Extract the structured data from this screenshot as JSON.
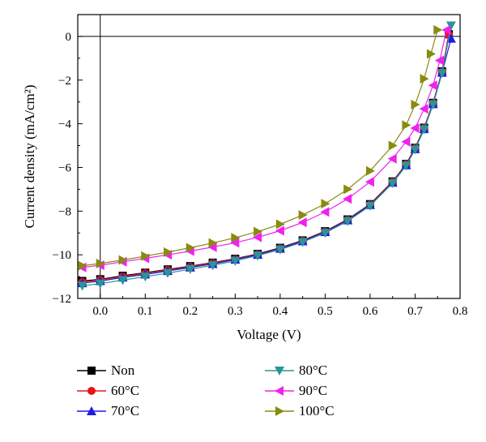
{
  "chart_data": {
    "type": "scatter",
    "xlabel": "Voltage (V)",
    "ylabel": "Current density (mA/cm²)",
    "xlim": [
      -0.05,
      0.8
    ],
    "ylim": [
      -12,
      1
    ],
    "xticks": [
      "0.0",
      "0.1",
      "0.2",
      "0.3",
      "0.4",
      "0.5",
      "0.6",
      "0.7",
      "0.8"
    ],
    "yticks": [
      "0",
      "−2",
      "−4",
      "−6",
      "−8",
      "−10",
      "−12"
    ],
    "grid": false,
    "legend_position": "bottom",
    "series": [
      {
        "name": "Non",
        "color": "#000000",
        "marker": "square",
        "points": [
          [
            -0.04,
            -11.2
          ],
          [
            0.0,
            -11.12
          ],
          [
            0.05,
            -10.96
          ],
          [
            0.1,
            -10.82
          ],
          [
            0.15,
            -10.67
          ],
          [
            0.2,
            -10.52
          ],
          [
            0.25,
            -10.36
          ],
          [
            0.3,
            -10.18
          ],
          [
            0.35,
            -9.96
          ],
          [
            0.4,
            -9.68
          ],
          [
            0.45,
            -9.34
          ],
          [
            0.5,
            -8.92
          ],
          [
            0.55,
            -8.38
          ],
          [
            0.6,
            -7.68
          ],
          [
            0.65,
            -6.64
          ],
          [
            0.68,
            -5.84
          ],
          [
            0.7,
            -5.1
          ],
          [
            0.72,
            -4.18
          ],
          [
            0.74,
            -3.04
          ],
          [
            0.76,
            -1.6
          ],
          [
            0.775,
            0.1
          ]
        ]
      },
      {
        "name": "60°C",
        "color": "#e8141a",
        "marker": "circle",
        "points": [
          [
            -0.04,
            -11.25
          ],
          [
            0.0,
            -11.15
          ],
          [
            0.05,
            -11.0
          ],
          [
            0.1,
            -10.85
          ],
          [
            0.15,
            -10.7
          ],
          [
            0.2,
            -10.55
          ],
          [
            0.25,
            -10.38
          ],
          [
            0.3,
            -10.2
          ],
          [
            0.35,
            -9.98
          ],
          [
            0.4,
            -9.7
          ],
          [
            0.45,
            -9.36
          ],
          [
            0.5,
            -8.94
          ],
          [
            0.55,
            -8.4
          ],
          [
            0.6,
            -7.7
          ],
          [
            0.65,
            -6.66
          ],
          [
            0.68,
            -5.86
          ],
          [
            0.7,
            -5.12
          ],
          [
            0.72,
            -4.2
          ],
          [
            0.74,
            -3.06
          ],
          [
            0.76,
            -1.62
          ],
          [
            0.775,
            0.08
          ]
        ]
      },
      {
        "name": "70°C",
        "color": "#1c1ce6",
        "marker": "triangle-up",
        "points": [
          [
            -0.04,
            -11.3
          ],
          [
            0.0,
            -11.2
          ],
          [
            0.05,
            -11.04
          ],
          [
            0.1,
            -10.9
          ],
          [
            0.15,
            -10.74
          ],
          [
            0.2,
            -10.58
          ],
          [
            0.25,
            -10.42
          ],
          [
            0.3,
            -10.22
          ],
          [
            0.35,
            -10.0
          ],
          [
            0.4,
            -9.72
          ],
          [
            0.45,
            -9.38
          ],
          [
            0.5,
            -8.96
          ],
          [
            0.55,
            -8.42
          ],
          [
            0.6,
            -7.72
          ],
          [
            0.65,
            -6.7
          ],
          [
            0.68,
            -5.9
          ],
          [
            0.7,
            -5.16
          ],
          [
            0.72,
            -4.24
          ],
          [
            0.74,
            -3.1
          ],
          [
            0.76,
            -1.66
          ],
          [
            0.78,
            -0.1
          ]
        ]
      },
      {
        "name": "80°C",
        "color": "#2a9595",
        "marker": "triangle-down",
        "points": [
          [
            -0.04,
            -11.42
          ],
          [
            0.0,
            -11.32
          ],
          [
            0.05,
            -11.16
          ],
          [
            0.1,
            -11.0
          ],
          [
            0.15,
            -10.84
          ],
          [
            0.2,
            -10.66
          ],
          [
            0.25,
            -10.48
          ],
          [
            0.3,
            -10.28
          ],
          [
            0.35,
            -10.04
          ],
          [
            0.4,
            -9.76
          ],
          [
            0.45,
            -9.42
          ],
          [
            0.5,
            -9.0
          ],
          [
            0.55,
            -8.46
          ],
          [
            0.6,
            -7.76
          ],
          [
            0.65,
            -6.72
          ],
          [
            0.68,
            -5.92
          ],
          [
            0.7,
            -5.18
          ],
          [
            0.72,
            -4.26
          ],
          [
            0.74,
            -3.12
          ],
          [
            0.76,
            -1.68
          ],
          [
            0.78,
            0.5
          ]
        ]
      },
      {
        "name": "90°C",
        "color": "#ee22ee",
        "marker": "triangle-left",
        "points": [
          [
            -0.04,
            -10.58
          ],
          [
            0.0,
            -10.48
          ],
          [
            0.05,
            -10.32
          ],
          [
            0.1,
            -10.16
          ],
          [
            0.15,
            -10.0
          ],
          [
            0.2,
            -9.83
          ],
          [
            0.25,
            -9.65
          ],
          [
            0.3,
            -9.45
          ],
          [
            0.35,
            -9.2
          ],
          [
            0.4,
            -8.9
          ],
          [
            0.45,
            -8.52
          ],
          [
            0.5,
            -8.04
          ],
          [
            0.55,
            -7.44
          ],
          [
            0.6,
            -6.66
          ],
          [
            0.65,
            -5.6
          ],
          [
            0.68,
            -4.82
          ],
          [
            0.7,
            -4.2
          ],
          [
            0.72,
            -3.32
          ],
          [
            0.74,
            -2.24
          ],
          [
            0.755,
            -1.1
          ],
          [
            0.77,
            0.3
          ]
        ]
      },
      {
        "name": "100°C",
        "color": "#8a8a10",
        "marker": "triangle-right",
        "points": [
          [
            -0.04,
            -10.5
          ],
          [
            0.0,
            -10.4
          ],
          [
            0.05,
            -10.24
          ],
          [
            0.1,
            -10.06
          ],
          [
            0.15,
            -9.88
          ],
          [
            0.2,
            -9.68
          ],
          [
            0.25,
            -9.46
          ],
          [
            0.3,
            -9.22
          ],
          [
            0.35,
            -8.94
          ],
          [
            0.4,
            -8.6
          ],
          [
            0.45,
            -8.18
          ],
          [
            0.5,
            -7.66
          ],
          [
            0.55,
            -7.0
          ],
          [
            0.6,
            -6.16
          ],
          [
            0.65,
            -5.0
          ],
          [
            0.68,
            -4.06
          ],
          [
            0.7,
            -3.12
          ],
          [
            0.72,
            -1.94
          ],
          [
            0.735,
            -0.8
          ],
          [
            0.75,
            0.3
          ]
        ]
      }
    ]
  }
}
